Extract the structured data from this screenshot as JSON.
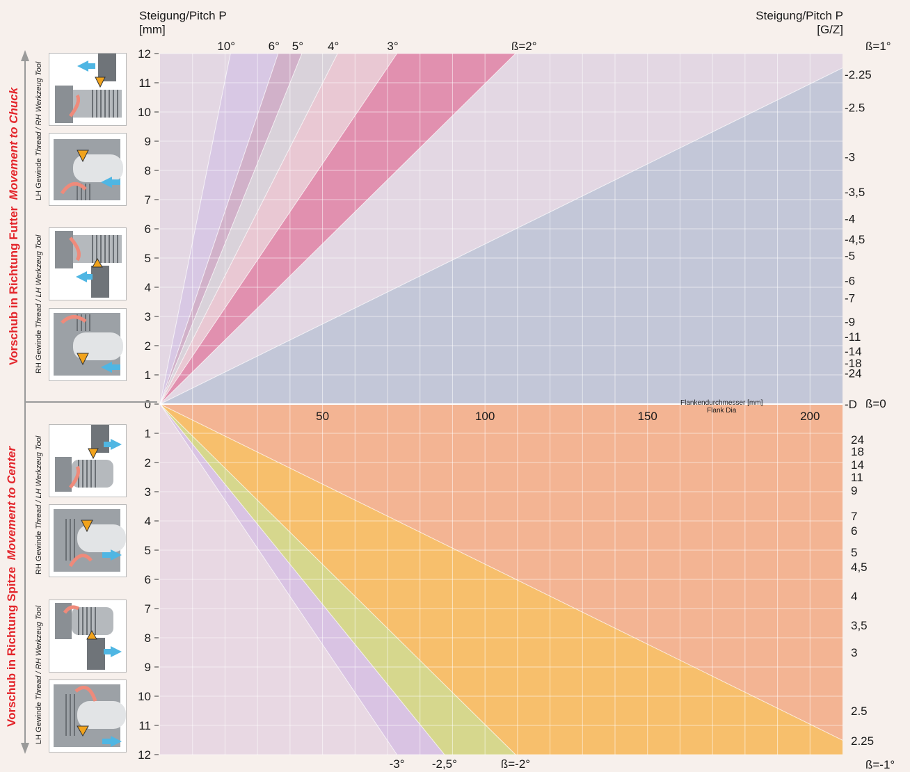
{
  "colors": {
    "background": "#f7f0ec",
    "grid": "#ffffff",
    "upper_base": "#e3d7e3",
    "upper_blue": "#c3c7d8",
    "lower_base": "#e8d8e3",
    "lower_salmon": "#f3b493",
    "lower_orange": "#f7bf6c",
    "lower_olive": "#d6d78d",
    "lower_lavender": "#d9c3e3",
    "magenta": "#e190af",
    "accent_red": "#e3262c",
    "arrow_blue": "#4fb6e3"
  },
  "left_axis": {
    "title_line1": "Steigung/Pitch P",
    "title_line2": "[mm]",
    "upper_ticks": [
      0,
      1,
      2,
      3,
      4,
      5,
      6,
      7,
      8,
      9,
      10,
      11,
      12
    ],
    "lower_ticks": [
      1,
      2,
      3,
      4,
      5,
      6,
      7,
      8,
      9,
      10,
      11,
      12
    ]
  },
  "right_axis": {
    "title_line1": "Steigung/Pitch P",
    "title_line2": "[G/Z]",
    "upper_labels": [
      "-2.25",
      "-2.5",
      "-3",
      "-3,5",
      "-4",
      "-4,5",
      "-5",
      "-6",
      "-7",
      "-9",
      "-11",
      "-14",
      "-18",
      "-24",
      "-D"
    ],
    "lower_labels": [
      "24",
      "18",
      "14",
      "11",
      "9",
      "7",
      "6",
      "5",
      "4,5",
      "4",
      "3,5",
      "3",
      "2.5",
      "2.25"
    ]
  },
  "flank_axis": {
    "label_line1": "Flankendurchmesser [mm]",
    "label_line2": "Flank Dia",
    "ticks": [
      50,
      100,
      150,
      200
    ]
  },
  "angle_labels": {
    "top": [
      "10°",
      "6°",
      "5°",
      "4°",
      "3°",
      "ß=2°"
    ],
    "right_top": "ß=1°",
    "zero": "ß=0",
    "bottom": [
      "-3°",
      "-2,5°",
      "ß=-2°"
    ],
    "right_bottom": "ß=-1°"
  },
  "side_labels": {
    "upper_de": "Vorschub in Richtung Futter",
    "upper_en": "Movement to Chuck",
    "lower_de": "Vorschub in Richtung Spitze",
    "lower_en": "Movement to Center"
  },
  "panel_labels": {
    "group1_de": "LH Gewinde",
    "group1_en": "Thread / RH Werkzeug Tool",
    "group2_de": "RH Gewinde",
    "group2_en": "Thread / LH Werkzeug Tool",
    "group3_de": "RH Gewinde",
    "group3_en": "Thread / LH Werkzeug Tool",
    "group4_de": "LH Gewinde",
    "group4_en": "Thread / RH Werkzeug Tool"
  },
  "chart_data": {
    "type": "area",
    "title": "",
    "xlabel": "Flankendurchmesser [mm] / Flank Dia",
    "ylabel": "Steigung/Pitch P [mm]",
    "xlim": [
      0,
      210
    ],
    "ylim": [
      -12,
      12
    ],
    "x_ticks": [
      50,
      100,
      150,
      200
    ],
    "grid": true,
    "upper_tpi_scale": [
      {
        "label": "-2.25",
        "pitch": 11.29
      },
      {
        "label": "-2.5",
        "pitch": 10.16
      },
      {
        "label": "-3",
        "pitch": 8.47
      },
      {
        "label": "-3,5",
        "pitch": 7.26
      },
      {
        "label": "-4",
        "pitch": 6.35
      },
      {
        "label": "-4,5",
        "pitch": 5.64
      },
      {
        "label": "-5",
        "pitch": 5.08
      },
      {
        "label": "-6",
        "pitch": 4.23
      },
      {
        "label": "-7",
        "pitch": 3.63
      },
      {
        "label": "-9",
        "pitch": 2.82
      },
      {
        "label": "-11",
        "pitch": 2.31
      },
      {
        "label": "-14",
        "pitch": 1.81
      },
      {
        "label": "-18",
        "pitch": 1.41
      },
      {
        "label": "-24",
        "pitch": 1.06
      },
      {
        "label": "-D",
        "pitch": 0
      }
    ],
    "lower_tpi_scale": [
      {
        "label": "24",
        "pitch": 1.06
      },
      {
        "label": "18",
        "pitch": 1.41
      },
      {
        "label": "14",
        "pitch": 1.81
      },
      {
        "label": "11",
        "pitch": 2.31
      },
      {
        "label": "9",
        "pitch": 2.82
      },
      {
        "label": "7",
        "pitch": 3.63
      },
      {
        "label": "6",
        "pitch": 4.23
      },
      {
        "label": "5",
        "pitch": 5.08
      },
      {
        "label": "4,5",
        "pitch": 5.64
      },
      {
        "label": "4",
        "pitch": 6.35
      },
      {
        "label": "3,5",
        "pitch": 7.26
      },
      {
        "label": "3",
        "pitch": 8.47
      },
      {
        "label": "2.5",
        "pitch": 10.16
      },
      {
        "label": "2.25",
        "pitch": 11.29
      }
    ],
    "series": [
      {
        "name": "10°",
        "pitch_per_mm": 0.5539
      },
      {
        "name": "6°",
        "pitch_per_mm": 0.3302
      },
      {
        "name": "5°",
        "pitch_per_mm": 0.2749
      },
      {
        "name": "4°",
        "pitch_per_mm": 0.2197
      },
      {
        "name": "3°",
        "pitch_per_mm": 0.1646
      },
      {
        "name": "ß=2°",
        "pitch_per_mm": 0.1097
      },
      {
        "name": "ß=1°",
        "pitch_per_mm": 0.0548
      },
      {
        "name": "ß=0",
        "pitch_per_mm": 0
      },
      {
        "name": "ß=-1°",
        "pitch_per_mm": -0.0548
      },
      {
        "name": "ß=-2°",
        "pitch_per_mm": -0.1097
      },
      {
        "name": "-2,5°",
        "pitch_per_mm": -0.1371
      },
      {
        "name": "-3°",
        "pitch_per_mm": -0.1646
      }
    ]
  }
}
